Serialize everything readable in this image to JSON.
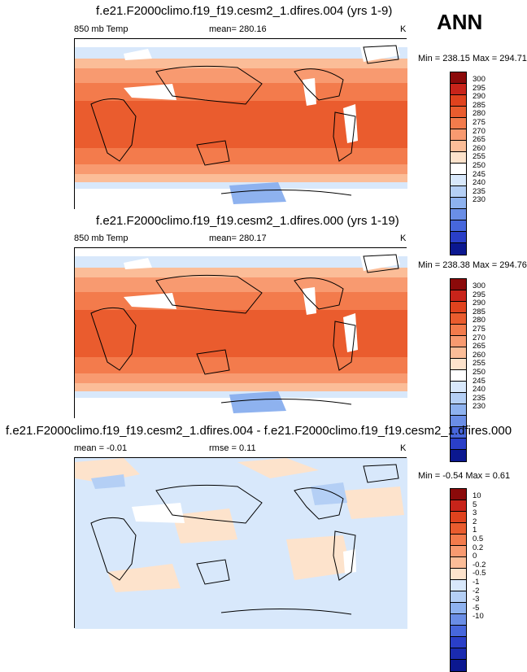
{
  "corner_label": "ANN",
  "panels": [
    {
      "title": "f.e21.F2000climo.f19_f19.cesm2_1.dfires.004 (yrs 1-9)",
      "left_label": "850 mb Temp",
      "center_label": "mean= 280.16",
      "units": "K",
      "minmax": "Min = 238.15 Max = 294.71"
    },
    {
      "title": "f.e21.F2000climo.f19_f19.cesm2_1.dfires.000 (yrs 1-19)",
      "left_label": "850 mb Temp",
      "center_label": "mean= 280.17",
      "units": "K",
      "minmax": "Min = 238.38 Max = 294.76"
    },
    {
      "title": "f.e21.F2000climo.f19_f19.cesm2_1.dfires.004 - f.e21.F2000climo.f19_f19.cesm2_1.dfires.000",
      "left_label": "mean = -0.01",
      "center_label": "rmse =  0.11",
      "units": "K",
      "minmax": "Min = -0.54 Max =  0.61"
    }
  ],
  "colorbars": {
    "absolute": {
      "labels": [
        "300",
        "295",
        "290",
        "285",
        "280",
        "275",
        "270",
        "265",
        "260",
        "255",
        "250",
        "245",
        "240",
        "235",
        "230"
      ],
      "colors": [
        "#8b0a0a",
        "#c8241a",
        "#e0431e",
        "#ea5c2e",
        "#f37b4c",
        "#f89a70",
        "#fbbd98",
        "#fde3cc",
        "#ffffff",
        "#d8e8fb",
        "#b4cff5",
        "#8eb2ef",
        "#6a8ee6",
        "#4767dc",
        "#2a3fc8",
        "#0b1890"
      ]
    },
    "difference": {
      "labels": [
        "10",
        "5",
        "3",
        "2",
        "1",
        "0.5",
        "0.2",
        "0",
        "-0.2",
        "-0.5",
        "-1",
        "-2",
        "-3",
        "-5",
        "-10"
      ],
      "colors": [
        "#8b0a0a",
        "#c8241a",
        "#e0431e",
        "#ea5c2e",
        "#f37b4c",
        "#f89a70",
        "#fbbd98",
        "#fde3cc",
        "#d8e8fb",
        "#b4cff5",
        "#8eb2ef",
        "#6a8ee6",
        "#4767dc",
        "#2a3fc8",
        "#1a2bb0",
        "#0b1890"
      ]
    }
  }
}
